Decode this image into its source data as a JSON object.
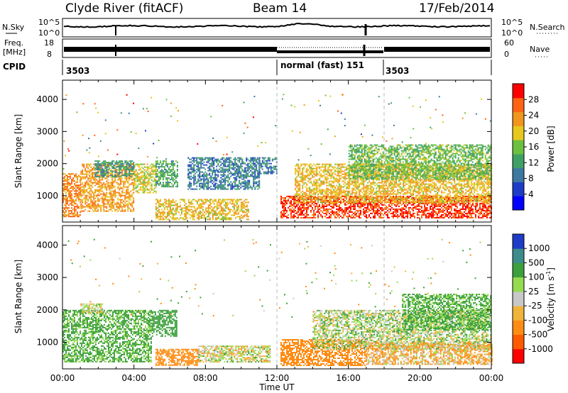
{
  "header": {
    "station": "Clyde River (fitACF)",
    "beam": "Beam 14",
    "date": "17/Feb/2014"
  },
  "left_labels": {
    "nsky": "N.Sky",
    "freq_line1": "Freq.",
    "freq_line2": "[MHz]",
    "cpid": "CPID"
  },
  "right_labels": {
    "nsearch": "N.Search",
    "nave": "Nave"
  },
  "noise_panel": {
    "left_ticks": [
      "10^5",
      "10^0"
    ],
    "right_ticks": [
      "10^5",
      "10^0"
    ]
  },
  "freq_panel": {
    "left_ticks": [
      "18",
      "8"
    ],
    "right_ticks": [
      "60",
      "0"
    ]
  },
  "cpid_panel": {
    "segments": [
      {
        "label": "3503",
        "start_hour": 0
      },
      {
        "label": "normal (fast) 151",
        "start_hour": 12
      },
      {
        "label": "3503",
        "start_hour": 18
      }
    ]
  },
  "colors": {
    "power_scale": [
      "#0000ff",
      "#1e3cc8",
      "#3c78a0",
      "#3ea064",
      "#6cc040",
      "#e6c81e",
      "#f0961e",
      "#ff6414",
      "#ff0000"
    ],
    "velocity_scale": [
      "#ff0000",
      "#ff5a00",
      "#ff8c14",
      "#f0b43c",
      "#c8c8c8",
      "#96dc50",
      "#3ca03c",
      "#3c8c8c",
      "#1e3cc8"
    ]
  },
  "chart_data": [
    {
      "type": "heatmap",
      "name": "power",
      "xlabel": "Time UT",
      "ylabel": "Slant Range [km]",
      "xlim": [
        0,
        24
      ],
      "ylim": [
        180,
        4600
      ],
      "yticks": [
        1000,
        2000,
        3000,
        4000
      ],
      "xticks": [
        "00:00",
        "04:00",
        "08:00",
        "12:00",
        "16:00",
        "20:00",
        "00:00"
      ],
      "colorbar": {
        "label": "Power [dB]",
        "range": [
          0,
          30
        ],
        "ticks": [
          "4",
          "8",
          "12",
          "16",
          "20",
          "24",
          "28"
        ]
      },
      "regions": [
        {
          "t": [
            0.0,
            1.0
          ],
          "range": [
            350,
            1700
          ],
          "value": 24
        },
        {
          "t": [
            1.0,
            4.0
          ],
          "range": [
            500,
            2000
          ],
          "value": 22
        },
        {
          "t": [
            4.0,
            5.2
          ],
          "range": [
            1100,
            2000
          ],
          "value": 18
        },
        {
          "t": [
            1.8,
            4.0
          ],
          "range": [
            1600,
            2100
          ],
          "value": 10
        },
        {
          "t": [
            5.2,
            6.4
          ],
          "range": [
            1300,
            2100
          ],
          "value": 12
        },
        {
          "t": [
            5.2,
            10.4
          ],
          "range": [
            250,
            900
          ],
          "value": 20
        },
        {
          "t": [
            7.0,
            11.0
          ],
          "range": [
            1200,
            2200
          ],
          "value": 8
        },
        {
          "t": [
            11.0,
            12.0
          ],
          "range": [
            1700,
            2200
          ],
          "value": 8
        },
        {
          "t": [
            12.2,
            24.0
          ],
          "range": [
            300,
            1000
          ],
          "value": 28
        },
        {
          "t": [
            13.0,
            24.0
          ],
          "range": [
            800,
            2000
          ],
          "value": 20
        },
        {
          "t": [
            16.0,
            24.0
          ],
          "range": [
            1500,
            2600
          ],
          "value": 14
        }
      ]
    },
    {
      "type": "heatmap",
      "name": "velocity",
      "xlabel": "Time UT",
      "ylabel": "Slant Range [km]",
      "xlim": [
        0,
        24
      ],
      "ylim": [
        180,
        4600
      ],
      "yticks": [
        1000,
        2000,
        3000,
        4000
      ],
      "xticks": [
        "00:00",
        "04:00",
        "08:00",
        "12:00",
        "16:00",
        "20:00",
        "00:00"
      ],
      "colorbar": {
        "label": "Velocity [m s^-1]",
        "ticks": [
          "1000",
          "500",
          "100",
          "25",
          "-25",
          "-100",
          "-500",
          "-1000"
        ]
      },
      "regions": [
        {
          "t": [
            0.0,
            5.0
          ],
          "range": [
            400,
            2000
          ],
          "value": 150
        },
        {
          "t": [
            1.0,
            2.2
          ],
          "range": [
            1900,
            2200
          ],
          "value": 0
        },
        {
          "t": [
            5.0,
            6.4
          ],
          "range": [
            1200,
            2000
          ],
          "value": 300
        },
        {
          "t": [
            5.2,
            7.6
          ],
          "range": [
            300,
            800
          ],
          "value": -200
        },
        {
          "t": [
            7.6,
            11.6
          ],
          "range": [
            400,
            900
          ],
          "value": 0
        },
        {
          "t": [
            12.2,
            17.0
          ],
          "range": [
            300,
            1100
          ],
          "value": -300
        },
        {
          "t": [
            14.0,
            24.0
          ],
          "range": [
            800,
            2000
          ],
          "value": 40
        },
        {
          "t": [
            17.0,
            24.0
          ],
          "range": [
            300,
            1000
          ],
          "value": -80
        },
        {
          "t": [
            19.0,
            24.0
          ],
          "range": [
            1400,
            2500
          ],
          "value": 150
        }
      ]
    }
  ]
}
